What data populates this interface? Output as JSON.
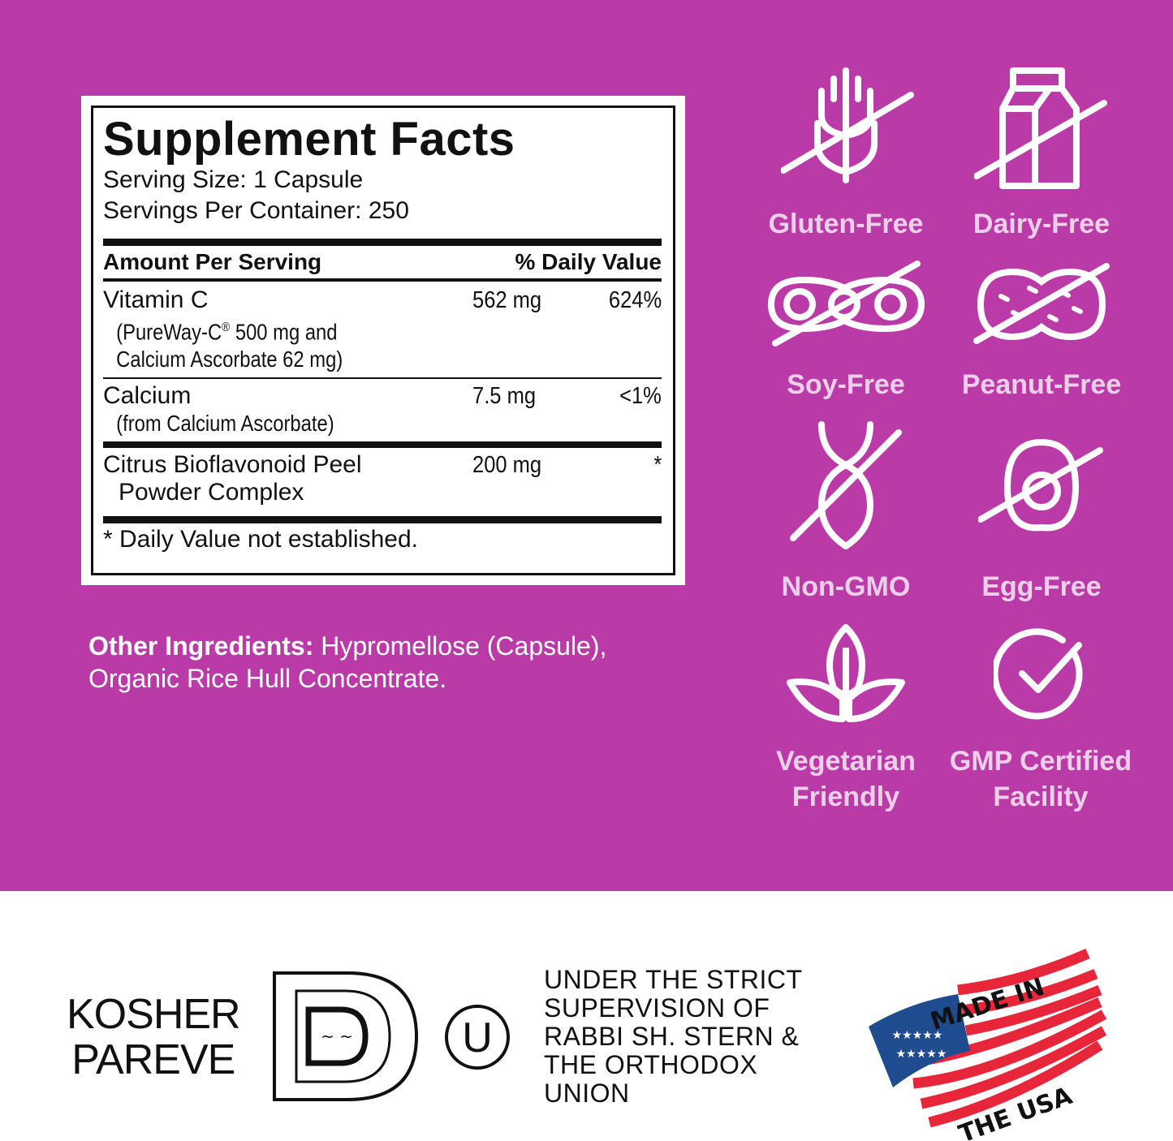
{
  "colors": {
    "background": "#ba3ba8",
    "badge_text": "#eecfe8",
    "flag_red": "#e8263a",
    "flag_blue": "#1f4b8f"
  },
  "facts": {
    "title": "Supplement Facts",
    "serving_size": "Serving Size: 1 Capsule",
    "servings_per_container": "Servings Per Container: 250",
    "header_amount": "Amount Per Serving",
    "header_dv": "% Daily Value",
    "rows": [
      {
        "name": "Vitamin C",
        "sub1": "(PureWay-C",
        "sub1_mark": "®",
        "sub1_rest": " 500 mg and",
        "sub2": "Calcium Ascorbate 62 mg)",
        "amount": "562  mg",
        "dv": "624%"
      },
      {
        "name": "Calcium",
        "sub1": "(from Calcium Ascorbate)",
        "amount": "7.5  mg",
        "dv": "<1%"
      },
      {
        "name": "Citrus Bioflavonoid Peel",
        "name2": "Powder Complex",
        "amount": "200  mg",
        "dv": "*"
      }
    ],
    "footnote": "* Daily Value not established."
  },
  "other_ingredients": {
    "label": "Other Ingredients:",
    "text": " Hypromellose (Capsule),",
    "text2": "Organic Rice Hull Concentrate."
  },
  "badges": [
    {
      "label": "Gluten-Free",
      "icon": "wheat-crossed-icon"
    },
    {
      "label": "Dairy-Free",
      "icon": "milk-carton-crossed-icon"
    },
    {
      "label": "Soy-Free",
      "icon": "soybean-crossed-icon"
    },
    {
      "label": "Peanut-Free",
      "icon": "peanut-crossed-icon"
    },
    {
      "label": "Non-GMO",
      "icon": "dna-crossed-icon"
    },
    {
      "label": "Egg-Free",
      "icon": "egg-crossed-icon"
    },
    {
      "label": "Vegetarian",
      "label2": "Friendly",
      "icon": "leaf-icon"
    },
    {
      "label": "GMP Certified",
      "label2": "Facility",
      "icon": "check-circle-icon"
    }
  ],
  "certifications": {
    "kosher_line1": "KOSHER",
    "kosher_line2": "PAREVE",
    "ou_letter": "U",
    "ou_text": [
      "UNDER THE STRICT",
      "SUPERVISION OF",
      "RABBI SH. STERN &",
      "THE ORTHODOX",
      "UNION"
    ],
    "made_in_top": "MADE IN",
    "made_in_bottom": "THE USA"
  }
}
